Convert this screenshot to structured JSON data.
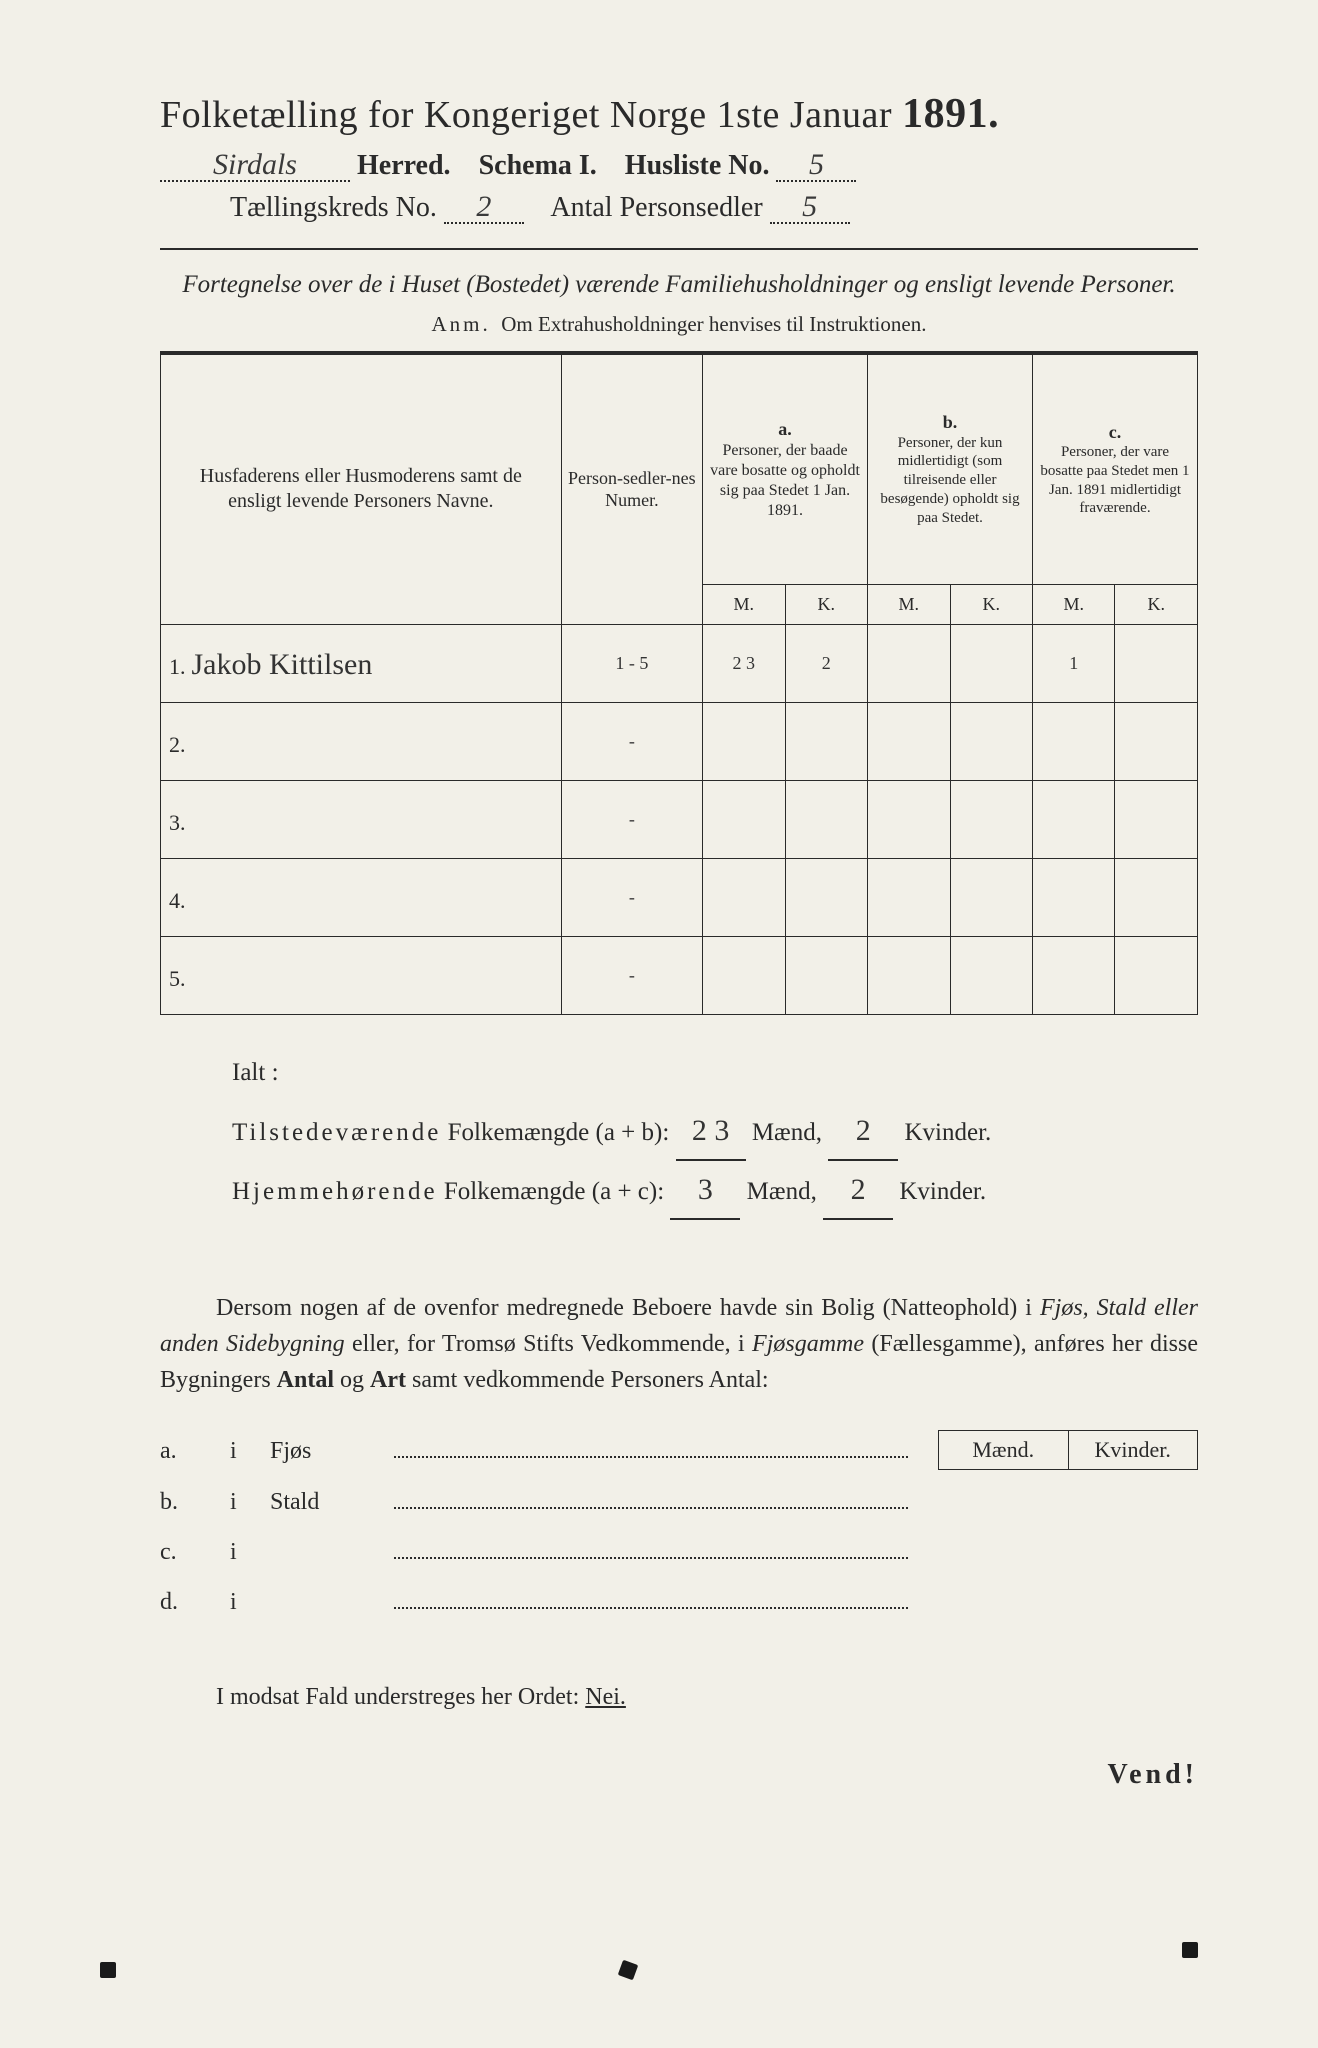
{
  "header": {
    "title_prefix": "Folketælling for Kongeriget Norge 1ste Januar",
    "year": "1891.",
    "herred_value": "Sirdals",
    "herred_label": "Herred.",
    "schema_label": "Schema I.",
    "husliste_label": "Husliste No.",
    "husliste_value": "5",
    "kreds_label": "Tællingskreds No.",
    "kreds_value": "2",
    "antal_label": "Antal Personsedler",
    "antal_value": "5"
  },
  "subtitle": "Fortegnelse over de i Huset (Bostedet) værende Familiehusholdninger og ensligt levende Personer.",
  "anm_label": "Anm.",
  "anm_text": "Om Extrahusholdninger henvises til Instruktionen.",
  "table": {
    "col_name": "Husfaderens eller Husmoderens samt de ensligt levende Personers Navne.",
    "col_num": "Person-sedler-nes Numer.",
    "col_a_hdr": "a.",
    "col_a": "Personer, der baade vare bosatte og opholdt sig paa Stedet 1 Jan. 1891.",
    "col_b_hdr": "b.",
    "col_b": "Personer, der kun midlertidigt (som tilreisende eller besøgende) opholdt sig paa Stedet.",
    "col_c_hdr": "c.",
    "col_c": "Personer, der vare bosatte paa Stedet men 1 Jan. 1891 midlertidigt fraværende.",
    "M": "M.",
    "K": "K.",
    "rows": [
      {
        "idx": "1.",
        "name": "Jakob Kittilsen",
        "num": "1 - 5",
        "aM": "2 3",
        "aK": "2",
        "bM": "",
        "bK": "",
        "cM": "1",
        "cK": ""
      },
      {
        "idx": "2.",
        "name": "",
        "num": "-",
        "aM": "",
        "aK": "",
        "bM": "",
        "bK": "",
        "cM": "",
        "cK": ""
      },
      {
        "idx": "3.",
        "name": "",
        "num": "-",
        "aM": "",
        "aK": "",
        "bM": "",
        "bK": "",
        "cM": "",
        "cK": ""
      },
      {
        "idx": "4.",
        "name": "",
        "num": "-",
        "aM": "",
        "aK": "",
        "bM": "",
        "bK": "",
        "cM": "",
        "cK": ""
      },
      {
        "idx": "5.",
        "name": "",
        "num": "-",
        "aM": "",
        "aK": "",
        "bM": "",
        "bK": "",
        "cM": "",
        "cK": ""
      }
    ]
  },
  "totals": {
    "ialt": "Ialt :",
    "line1_a": "Tilstedeværende",
    "line1_b": "Folkemængde (a + b):",
    "line1_m": "2 3",
    "line1_k": "2",
    "line2_a": "Hjemmehørende",
    "line2_b": "Folkemængde (a + c):",
    "line2_m": "3",
    "line2_k": "2",
    "maend": "Mænd,",
    "kvinder": "Kvinder."
  },
  "paragraph": {
    "text1": "Dersom nogen af de ovenfor medregnede Beboere havde sin Bolig (Natteophold) i ",
    "em1": "Fjøs, Stald eller anden Sidebygning",
    "text2": " eller, for Tromsø Stifts Vedkommende, i ",
    "em2": "Fjøsgamme",
    "text3": " (Fællesgamme), anføres her disse Bygningers ",
    "b1": "Antal",
    "text4": " og ",
    "b2": "Art",
    "text5": " samt vedkommende Personers Antal:"
  },
  "mkbox": {
    "m": "Mænd.",
    "k": "Kvinder."
  },
  "abcd": {
    "rows": [
      {
        "lbl": "a.",
        "i": "i",
        "word": "Fjøs"
      },
      {
        "lbl": "b.",
        "i": "i",
        "word": "Stald"
      },
      {
        "lbl": "c.",
        "i": "i",
        "word": ""
      },
      {
        "lbl": "d.",
        "i": "i",
        "word": ""
      }
    ]
  },
  "nei_line": {
    "text": "I modsat Fald understreges her Ordet: ",
    "nei": "Nei."
  },
  "vend": "Vend!",
  "style": {
    "page_bg": "#f2f0e8",
    "ink": "#2a2a2a",
    "hand_ink": "#333",
    "border_width": 1.5,
    "body_font": "Georgia, 'Times New Roman', serif",
    "hand_font": "'Brush Script MT', cursive"
  }
}
